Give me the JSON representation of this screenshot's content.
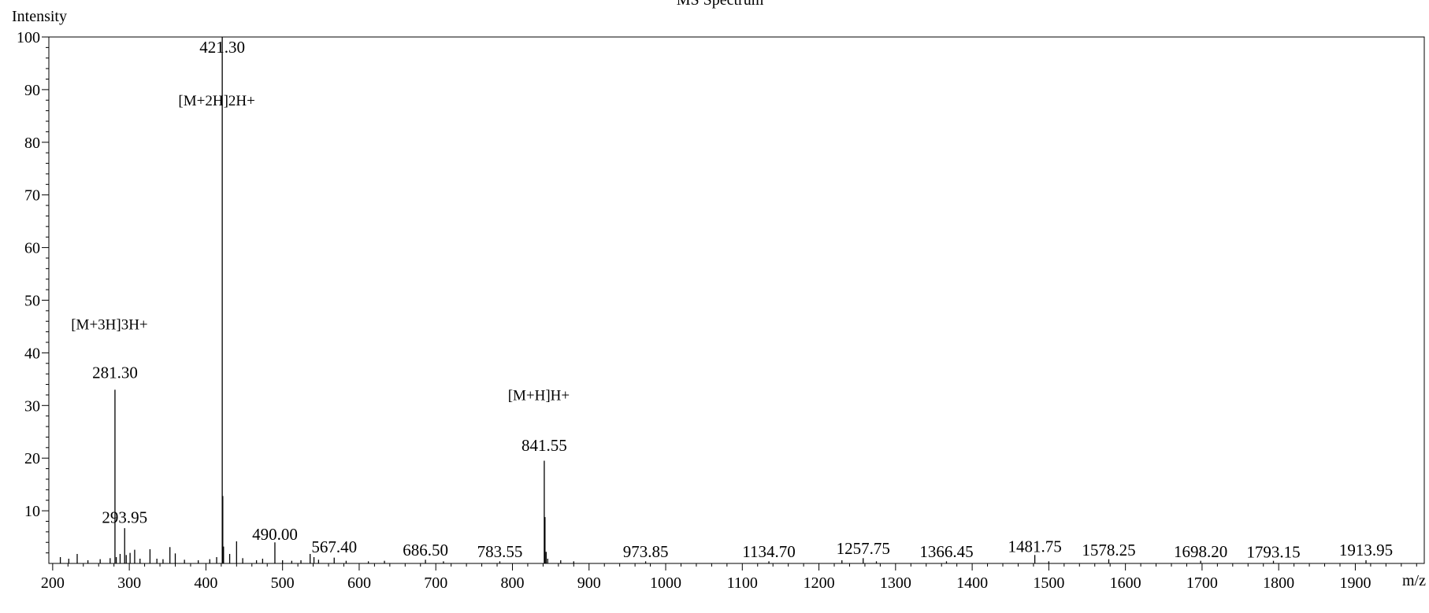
{
  "chart_data": {
    "type": "line",
    "title": "MS Spectrum",
    "xlabel": "m/z",
    "ylabel": "Intensity",
    "xlim": [
      195,
      1990
    ],
    "ylim": [
      0,
      100
    ],
    "x_ticks": [
      200,
      300,
      400,
      500,
      600,
      700,
      800,
      900,
      1000,
      1100,
      1200,
      1300,
      1400,
      1500,
      1600,
      1700,
      1800,
      1900
    ],
    "y_ticks": [
      10,
      20,
      30,
      40,
      50,
      60,
      70,
      80,
      90,
      100
    ],
    "grid": false,
    "legend": "none",
    "series": [
      {
        "peaks": [
          {
            "x": 210,
            "y": 1.2
          },
          {
            "x": 221,
            "y": 0.9
          },
          {
            "x": 232,
            "y": 1.8
          },
          {
            "x": 246,
            "y": 0.6
          },
          {
            "x": 262,
            "y": 0.8
          },
          {
            "x": 275,
            "y": 1.0
          },
          {
            "x": 281.3,
            "y": 33.0
          },
          {
            "x": 283,
            "y": 1.2
          },
          {
            "x": 288,
            "y": 1.8
          },
          {
            "x": 293.95,
            "y": 6.7
          },
          {
            "x": 296,
            "y": 1.6
          },
          {
            "x": 301,
            "y": 2.0
          },
          {
            "x": 307,
            "y": 2.6
          },
          {
            "x": 314,
            "y": 0.9
          },
          {
            "x": 327,
            "y": 2.7
          },
          {
            "x": 336,
            "y": 0.9
          },
          {
            "x": 344,
            "y": 0.8
          },
          {
            "x": 353,
            "y": 3.1
          },
          {
            "x": 360,
            "y": 1.9
          },
          {
            "x": 372,
            "y": 0.7
          },
          {
            "x": 390,
            "y": 0.6
          },
          {
            "x": 405,
            "y": 0.8
          },
          {
            "x": 414,
            "y": 1.2
          },
          {
            "x": 421.3,
            "y": 100.0
          },
          {
            "x": 422,
            "y": 12.8
          },
          {
            "x": 423,
            "y": 3.2
          },
          {
            "x": 431,
            "y": 1.8
          },
          {
            "x": 440,
            "y": 4.2
          },
          {
            "x": 448,
            "y": 1.0
          },
          {
            "x": 466,
            "y": 0.6
          },
          {
            "x": 474,
            "y": 0.9
          },
          {
            "x": 490.0,
            "y": 4.0
          },
          {
            "x": 500,
            "y": 0.6
          },
          {
            "x": 512,
            "y": 0.5
          },
          {
            "x": 524,
            "y": 0.6
          },
          {
            "x": 536,
            "y": 1.8
          },
          {
            "x": 541,
            "y": 1.2
          },
          {
            "x": 547,
            "y": 0.7
          },
          {
            "x": 567.4,
            "y": 1.1
          },
          {
            "x": 583,
            "y": 0.5
          },
          {
            "x": 612,
            "y": 0.4
          },
          {
            "x": 633,
            "y": 0.5
          },
          {
            "x": 686.5,
            "y": 0.7
          },
          {
            "x": 710,
            "y": 0.4
          },
          {
            "x": 783.55,
            "y": 0.4
          },
          {
            "x": 841.55,
            "y": 19.5
          },
          {
            "x": 842.5,
            "y": 8.8
          },
          {
            "x": 844,
            "y": 2.2
          },
          {
            "x": 846,
            "y": 0.9
          },
          {
            "x": 863,
            "y": 0.6
          },
          {
            "x": 880,
            "y": 0.4
          },
          {
            "x": 973.85,
            "y": 0.4
          },
          {
            "x": 1134.7,
            "y": 0.4
          },
          {
            "x": 1230,
            "y": 0.6
          },
          {
            "x": 1257.75,
            "y": 1.0
          },
          {
            "x": 1275,
            "y": 0.4
          },
          {
            "x": 1366.45,
            "y": 0.4
          },
          {
            "x": 1481.75,
            "y": 1.6
          },
          {
            "x": 1500,
            "y": 0.4
          },
          {
            "x": 1578.25,
            "y": 0.8
          },
          {
            "x": 1698.2,
            "y": 0.5
          },
          {
            "x": 1793.15,
            "y": 0.5
          },
          {
            "x": 1913.95,
            "y": 0.6
          }
        ]
      }
    ],
    "peak_labels": [
      {
        "x": 421.3,
        "text": "421.30",
        "y": 97.0
      },
      {
        "x": 281.3,
        "text": "281.30",
        "y": 35.2
      },
      {
        "x": 293.95,
        "text": "293.95",
        "y": 7.7
      },
      {
        "x": 490.0,
        "text": "490.00",
        "y": 4.5
      },
      {
        "x": 567.4,
        "text": "567.40",
        "y": 2.1
      },
      {
        "x": 686.5,
        "text": "686.50",
        "y": 1.5
      },
      {
        "x": 783.55,
        "text": "783.55",
        "y": 1.2
      },
      {
        "x": 841.55,
        "text": "841.55",
        "y": 21.4
      },
      {
        "x": 973.85,
        "text": "973.85",
        "y": 1.2
      },
      {
        "x": 1134.7,
        "text": "1134.70",
        "y": 1.2
      },
      {
        "x": 1257.75,
        "text": "1257.75",
        "y": 1.8
      },
      {
        "x": 1366.45,
        "text": "1366.45",
        "y": 1.2
      },
      {
        "x": 1481.75,
        "text": "1481.75",
        "y": 2.2
      },
      {
        "x": 1578.25,
        "text": "1578.25",
        "y": 1.5
      },
      {
        "x": 1698.2,
        "text": "1698.20",
        "y": 1.2
      },
      {
        "x": 1793.15,
        "text": "1793.15",
        "y": 1.1
      },
      {
        "x": 1913.95,
        "text": "1913.95",
        "y": 1.5
      }
    ],
    "annotations": [
      {
        "x": 421.3,
        "y": 87.0,
        "text": "[M+2H]2H+"
      },
      {
        "x": 281.3,
        "y": 44.5,
        "text": "[M+3H]3H+"
      },
      {
        "x": 841.55,
        "y": 31.0,
        "text": "[M+H]H+"
      }
    ]
  }
}
